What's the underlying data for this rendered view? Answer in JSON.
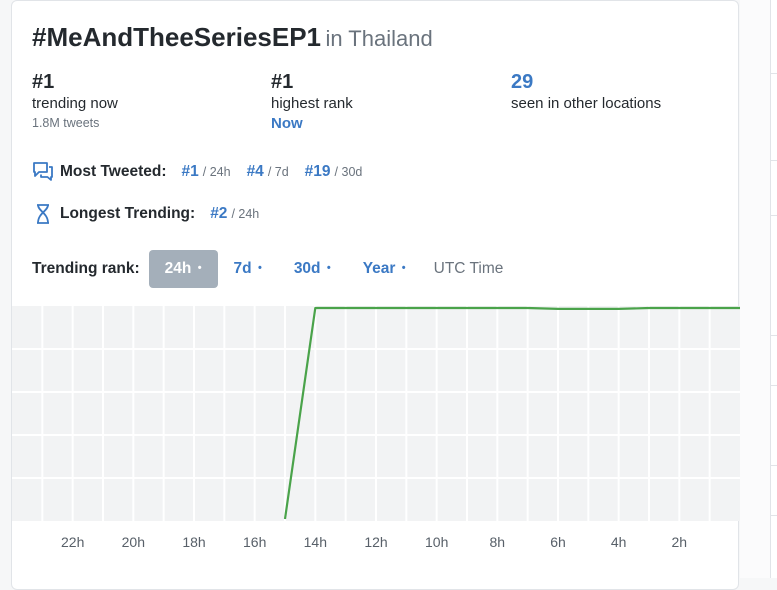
{
  "header": {
    "hashtag": "#MeAndTheeSeriesEP1",
    "location": "in Thailand"
  },
  "stats": {
    "trending_now": {
      "value": "#1",
      "label": "trending now",
      "sub": "1.8M tweets"
    },
    "highest_rank": {
      "value": "#1",
      "label": "highest rank",
      "when": "Now"
    },
    "other_locations": {
      "value": "29",
      "label": "seen in other locations"
    }
  },
  "most_tweeted": {
    "label": "Most Tweeted:",
    "icon": "chat-bubbles-icon",
    "items": [
      {
        "rank": "#1",
        "period": "/ 24h"
      },
      {
        "rank": "#4",
        "period": "/ 7d"
      },
      {
        "rank": "#19",
        "period": "/ 30d"
      }
    ]
  },
  "longest_trending": {
    "label": "Longest Trending:",
    "icon": "hourglass-icon",
    "items": [
      {
        "rank": "#2",
        "period": "/ 24h"
      }
    ]
  },
  "trending_rank": {
    "label": "Trending rank:",
    "tabs": [
      {
        "label": "24h",
        "dot": "•",
        "active": true
      },
      {
        "label": "7d",
        "dot": "•",
        "active": false
      },
      {
        "label": "30d",
        "dot": "•",
        "active": false
      },
      {
        "label": "Year",
        "dot": "•",
        "active": false
      }
    ],
    "utc": "UTC Time"
  },
  "colors": {
    "accent": "#3b79c4",
    "active_tab_bg": "#a4afba",
    "line": "#4aa34a",
    "chart_bg": "#f2f3f4"
  },
  "chart_data": {
    "type": "line",
    "x_tick_labels": [
      "22h",
      "20h",
      "18h",
      "16h",
      "14h",
      "12h",
      "10h",
      "8h",
      "6h",
      "4h",
      "2h"
    ],
    "series": [
      {
        "hours_ago": [
          15,
          14,
          13,
          12,
          11,
          10,
          9,
          8,
          7,
          6,
          5,
          4,
          3,
          2,
          1,
          0
        ],
        "rank": [
          50,
          1,
          1,
          1,
          1,
          1,
          1,
          1,
          1,
          1.2,
          1.2,
          1.2,
          1,
          1,
          1,
          1
        ]
      }
    ],
    "xlim": [
      24,
      0
    ],
    "ylim": [
      1,
      50
    ],
    "grid": true
  }
}
